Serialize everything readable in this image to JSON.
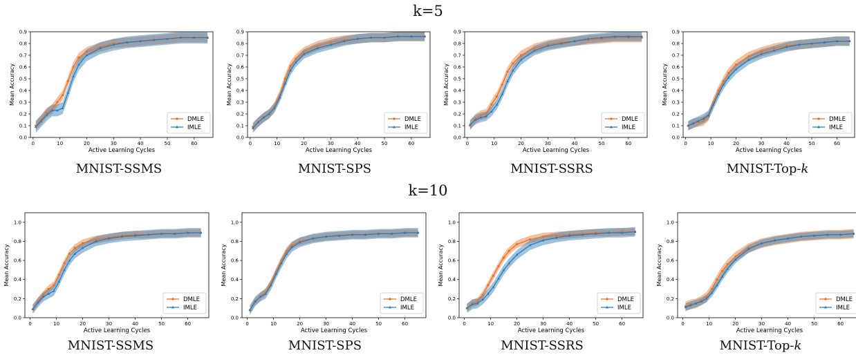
{
  "rows": [
    {
      "title": "k=5"
    },
    {
      "title": "k=10"
    }
  ],
  "captions": [
    {
      "text": "MNIST-SSMS"
    },
    {
      "text": "MNIST-SPS"
    },
    {
      "text": "MNIST-SSRS"
    },
    {
      "text": "MNIST-Top-",
      "italic": "k"
    },
    {
      "text": "MNIST-SSMS"
    },
    {
      "text": "MNIST-SPS"
    },
    {
      "text": "MNIST-SSRS"
    },
    {
      "text": "MNIST-Top-",
      "italic": "k"
    }
  ],
  "colors": {
    "DMLE": "#e4732c",
    "IMLE": "#2b7bb9"
  },
  "chart_data": [
    {
      "type": "line",
      "row": "k=5",
      "subtitle": "MNIST-SSMS",
      "xlabel": "Active Learning Cycles",
      "ylabel": "Mean Accuracy",
      "xlim": [
        -1,
        67
      ],
      "ylim": [
        0.0,
        0.9
      ],
      "xticks": [
        0,
        10,
        20,
        30,
        40,
        50,
        60
      ],
      "yticks": [
        0.0,
        0.1,
        0.2,
        0.3,
        0.4,
        0.5,
        0.6,
        0.7,
        0.8,
        0.9
      ],
      "legend": "lower-right",
      "series": [
        {
          "name": "DMLE",
          "x": [
            1,
            3,
            5,
            7,
            9,
            11,
            13,
            15,
            17,
            20,
            25,
            30,
            35,
            40,
            45,
            50,
            55,
            60,
            65
          ],
          "y": [
            0.1,
            0.15,
            0.21,
            0.24,
            0.3,
            0.36,
            0.48,
            0.6,
            0.68,
            0.73,
            0.77,
            0.8,
            0.81,
            0.82,
            0.83,
            0.84,
            0.85,
            0.85,
            0.85
          ],
          "band": 0.04
        },
        {
          "name": "IMLE",
          "x": [
            1,
            3,
            5,
            7,
            9,
            11,
            13,
            15,
            17,
            20,
            25,
            30,
            35,
            40,
            45,
            50,
            55,
            60,
            65
          ],
          "y": [
            0.09,
            0.14,
            0.19,
            0.23,
            0.23,
            0.25,
            0.38,
            0.52,
            0.62,
            0.7,
            0.76,
            0.79,
            0.81,
            0.82,
            0.83,
            0.84,
            0.85,
            0.85,
            0.85
          ],
          "band": 0.05
        }
      ]
    },
    {
      "type": "line",
      "row": "k=5",
      "subtitle": "MNIST-SPS",
      "xlabel": "Active Learning Cycles",
      "ylabel": "Mean Accuracy",
      "xlim": [
        -1,
        67
      ],
      "ylim": [
        0.0,
        0.9
      ],
      "xticks": [
        0,
        10,
        20,
        30,
        40,
        50,
        60
      ],
      "yticks": [
        0.0,
        0.1,
        0.2,
        0.3,
        0.4,
        0.5,
        0.6,
        0.7,
        0.8,
        0.9
      ],
      "legend": "lower-right",
      "series": [
        {
          "name": "DMLE",
          "x": [
            1,
            3,
            5,
            7,
            9,
            11,
            13,
            15,
            17,
            20,
            25,
            30,
            35,
            40,
            45,
            50,
            55,
            60,
            65
          ],
          "y": [
            0.09,
            0.13,
            0.17,
            0.2,
            0.26,
            0.36,
            0.5,
            0.61,
            0.67,
            0.73,
            0.78,
            0.81,
            0.83,
            0.84,
            0.85,
            0.85,
            0.86,
            0.86,
            0.86
          ],
          "band": 0.04
        },
        {
          "name": "IMLE",
          "x": [
            1,
            3,
            5,
            7,
            9,
            11,
            13,
            15,
            17,
            20,
            25,
            30,
            35,
            40,
            45,
            50,
            55,
            60,
            65
          ],
          "y": [
            0.08,
            0.13,
            0.17,
            0.2,
            0.25,
            0.34,
            0.46,
            0.57,
            0.64,
            0.71,
            0.76,
            0.79,
            0.82,
            0.84,
            0.85,
            0.85,
            0.86,
            0.86,
            0.86
          ],
          "band": 0.04
        }
      ]
    },
    {
      "type": "line",
      "row": "k=5",
      "subtitle": "MNIST-SSRS",
      "xlabel": "Active Learning Cycles",
      "ylabel": "Mean Accuracy",
      "xlim": [
        -1,
        67
      ],
      "ylim": [
        0.0,
        0.9
      ],
      "xticks": [
        0,
        10,
        20,
        30,
        40,
        50,
        60
      ],
      "yticks": [
        0.0,
        0.1,
        0.2,
        0.3,
        0.4,
        0.5,
        0.6,
        0.7,
        0.8,
        0.9
      ],
      "legend": "lower-right",
      "series": [
        {
          "name": "DMLE",
          "x": [
            1,
            3,
            5,
            7,
            9,
            11,
            13,
            15,
            17,
            20,
            25,
            30,
            35,
            40,
            45,
            50,
            55,
            60,
            65
          ],
          "y": [
            0.1,
            0.16,
            0.19,
            0.2,
            0.28,
            0.35,
            0.45,
            0.56,
            0.63,
            0.7,
            0.76,
            0.79,
            0.81,
            0.82,
            0.83,
            0.84,
            0.85,
            0.85,
            0.85
          ],
          "band": 0.04
        },
        {
          "name": "IMLE",
          "x": [
            1,
            3,
            5,
            7,
            9,
            11,
            13,
            15,
            17,
            20,
            25,
            30,
            35,
            40,
            45,
            50,
            55,
            60,
            65
          ],
          "y": [
            0.11,
            0.15,
            0.17,
            0.18,
            0.22,
            0.28,
            0.37,
            0.48,
            0.57,
            0.66,
            0.74,
            0.78,
            0.8,
            0.82,
            0.84,
            0.85,
            0.86,
            0.86,
            0.86
          ],
          "band": 0.04
        }
      ]
    },
    {
      "type": "line",
      "row": "k=5",
      "subtitle": "MNIST-Top-k",
      "xlabel": "Active Learning Cycles",
      "ylabel": "Mean Accuracy",
      "xlim": [
        -1,
        67
      ],
      "ylim": [
        0.0,
        0.9
      ],
      "xticks": [
        0,
        10,
        20,
        30,
        40,
        50,
        60
      ],
      "yticks": [
        0.0,
        0.1,
        0.2,
        0.3,
        0.4,
        0.5,
        0.6,
        0.7,
        0.8,
        0.9
      ],
      "legend": "lower-right",
      "series": [
        {
          "name": "DMLE",
          "x": [
            1,
            3,
            5,
            7,
            9,
            11,
            13,
            15,
            17,
            20,
            25,
            30,
            35,
            40,
            45,
            50,
            55,
            60,
            65
          ],
          "y": [
            0.1,
            0.12,
            0.13,
            0.14,
            0.18,
            0.3,
            0.4,
            0.48,
            0.55,
            0.62,
            0.69,
            0.73,
            0.76,
            0.78,
            0.79,
            0.8,
            0.81,
            0.82,
            0.82
          ],
          "band": 0.04
        },
        {
          "name": "IMLE",
          "x": [
            1,
            3,
            5,
            7,
            9,
            11,
            13,
            15,
            17,
            20,
            25,
            30,
            35,
            40,
            45,
            50,
            55,
            60,
            65
          ],
          "y": [
            0.1,
            0.12,
            0.14,
            0.16,
            0.19,
            0.28,
            0.37,
            0.45,
            0.51,
            0.58,
            0.66,
            0.71,
            0.74,
            0.77,
            0.79,
            0.8,
            0.81,
            0.82,
            0.82
          ],
          "band": 0.04
        }
      ]
    },
    {
      "type": "line",
      "row": "k=10",
      "subtitle": "MNIST-SSMS",
      "xlabel": "Active Learning Cycles",
      "ylabel": "Mean Accuracy",
      "xlim": [
        -2,
        68
      ],
      "ylim": [
        0.0,
        1.1
      ],
      "xticks": [
        0,
        10,
        20,
        30,
        40,
        50,
        60
      ],
      "yticks": [
        0.0,
        0.2,
        0.4,
        0.6,
        0.8,
        1.0
      ],
      "legend": "lower-right",
      "series": [
        {
          "name": "DMLE",
          "x": [
            1,
            3,
            5,
            7,
            9,
            11,
            13,
            15,
            17,
            20,
            25,
            30,
            35,
            40,
            45,
            50,
            55,
            60,
            65
          ],
          "y": [
            0.09,
            0.17,
            0.24,
            0.3,
            0.34,
            0.45,
            0.57,
            0.67,
            0.73,
            0.78,
            0.82,
            0.84,
            0.86,
            0.87,
            0.87,
            0.88,
            0.88,
            0.89,
            0.89
          ],
          "band": 0.04
        },
        {
          "name": "IMLE",
          "x": [
            1,
            3,
            5,
            7,
            9,
            11,
            13,
            15,
            17,
            20,
            25,
            30,
            35,
            40,
            45,
            50,
            55,
            60,
            65
          ],
          "y": [
            0.09,
            0.16,
            0.22,
            0.25,
            0.28,
            0.38,
            0.5,
            0.6,
            0.67,
            0.73,
            0.8,
            0.83,
            0.85,
            0.86,
            0.87,
            0.88,
            0.88,
            0.89,
            0.89
          ],
          "band": 0.05
        }
      ]
    },
    {
      "type": "line",
      "row": "k=10",
      "subtitle": "MNIST-SPS",
      "xlabel": "Active Learning Cycles",
      "ylabel": "Mean Accuracy",
      "xlim": [
        -2,
        68
      ],
      "ylim": [
        0.0,
        1.1
      ],
      "xticks": [
        0,
        10,
        20,
        30,
        40,
        50,
        60
      ],
      "yticks": [
        0.0,
        0.2,
        0.4,
        0.6,
        0.8,
        1.0
      ],
      "legend": "lower-right",
      "series": [
        {
          "name": "DMLE",
          "x": [
            1,
            3,
            5,
            7,
            9,
            11,
            13,
            15,
            17,
            20,
            25,
            30,
            35,
            40,
            45,
            50,
            55,
            60,
            65
          ],
          "y": [
            0.08,
            0.17,
            0.22,
            0.27,
            0.36,
            0.48,
            0.6,
            0.7,
            0.76,
            0.8,
            0.83,
            0.85,
            0.86,
            0.87,
            0.87,
            0.88,
            0.88,
            0.89,
            0.89
          ],
          "band": 0.04
        },
        {
          "name": "IMLE",
          "x": [
            1,
            3,
            5,
            7,
            9,
            11,
            13,
            15,
            17,
            20,
            25,
            30,
            35,
            40,
            45,
            50,
            55,
            60,
            65
          ],
          "y": [
            0.08,
            0.17,
            0.22,
            0.25,
            0.34,
            0.46,
            0.57,
            0.67,
            0.74,
            0.79,
            0.83,
            0.85,
            0.86,
            0.87,
            0.87,
            0.88,
            0.88,
            0.89,
            0.89
          ],
          "band": 0.05
        }
      ]
    },
    {
      "type": "line",
      "row": "k=10",
      "subtitle": "MNIST-SSRS",
      "xlabel": "Active Learning Cycles",
      "ylabel": "Mean Accuracy",
      "xlim": [
        -2,
        68
      ],
      "ylim": [
        0.0,
        1.1
      ],
      "xticks": [
        0,
        10,
        20,
        30,
        40,
        50,
        60
      ],
      "yticks": [
        0.0,
        0.2,
        0.4,
        0.6,
        0.8,
        1.0
      ],
      "legend": "lower-right",
      "series": [
        {
          "name": "DMLE",
          "x": [
            1,
            3,
            5,
            7,
            9,
            11,
            13,
            15,
            17,
            20,
            25,
            30,
            35,
            40,
            45,
            50,
            55,
            60,
            65
          ],
          "y": [
            0.1,
            0.15,
            0.17,
            0.24,
            0.34,
            0.44,
            0.54,
            0.63,
            0.7,
            0.77,
            0.82,
            0.85,
            0.86,
            0.87,
            0.88,
            0.89,
            0.89,
            0.9,
            0.9
          ],
          "band": 0.04
        },
        {
          "name": "IMLE",
          "x": [
            1,
            3,
            5,
            7,
            9,
            11,
            13,
            15,
            17,
            20,
            25,
            30,
            35,
            40,
            45,
            50,
            55,
            60,
            65
          ],
          "y": [
            0.1,
            0.14,
            0.15,
            0.19,
            0.25,
            0.32,
            0.41,
            0.5,
            0.57,
            0.66,
            0.76,
            0.81,
            0.84,
            0.86,
            0.87,
            0.88,
            0.89,
            0.89,
            0.9
          ],
          "band": 0.05
        }
      ]
    },
    {
      "type": "line",
      "row": "k=10",
      "subtitle": "MNIST-Top-k",
      "xlabel": "Active Learning Cycles",
      "ylabel": "Mean Accuracy",
      "xlim": [
        -2,
        68
      ],
      "ylim": [
        0.0,
        1.1
      ],
      "xticks": [
        0,
        10,
        20,
        30,
        40,
        50,
        60
      ],
      "yticks": [
        0.0,
        0.2,
        0.4,
        0.6,
        0.8,
        1.0
      ],
      "legend": "lower-right",
      "series": [
        {
          "name": "DMLE",
          "x": [
            1,
            3,
            5,
            7,
            9,
            11,
            13,
            15,
            17,
            20,
            25,
            30,
            35,
            40,
            45,
            50,
            55,
            60,
            65
          ],
          "y": [
            0.12,
            0.14,
            0.15,
            0.18,
            0.22,
            0.3,
            0.4,
            0.49,
            0.56,
            0.64,
            0.73,
            0.78,
            0.81,
            0.83,
            0.85,
            0.86,
            0.87,
            0.87,
            0.88
          ],
          "band": 0.05
        },
        {
          "name": "IMLE",
          "x": [
            1,
            3,
            5,
            7,
            9,
            11,
            13,
            15,
            17,
            20,
            25,
            30,
            35,
            40,
            45,
            50,
            55,
            60,
            65
          ],
          "y": [
            0.11,
            0.13,
            0.15,
            0.17,
            0.2,
            0.26,
            0.34,
            0.43,
            0.51,
            0.61,
            0.72,
            0.78,
            0.81,
            0.83,
            0.85,
            0.86,
            0.87,
            0.87,
            0.88
          ],
          "band": 0.04
        }
      ]
    }
  ]
}
